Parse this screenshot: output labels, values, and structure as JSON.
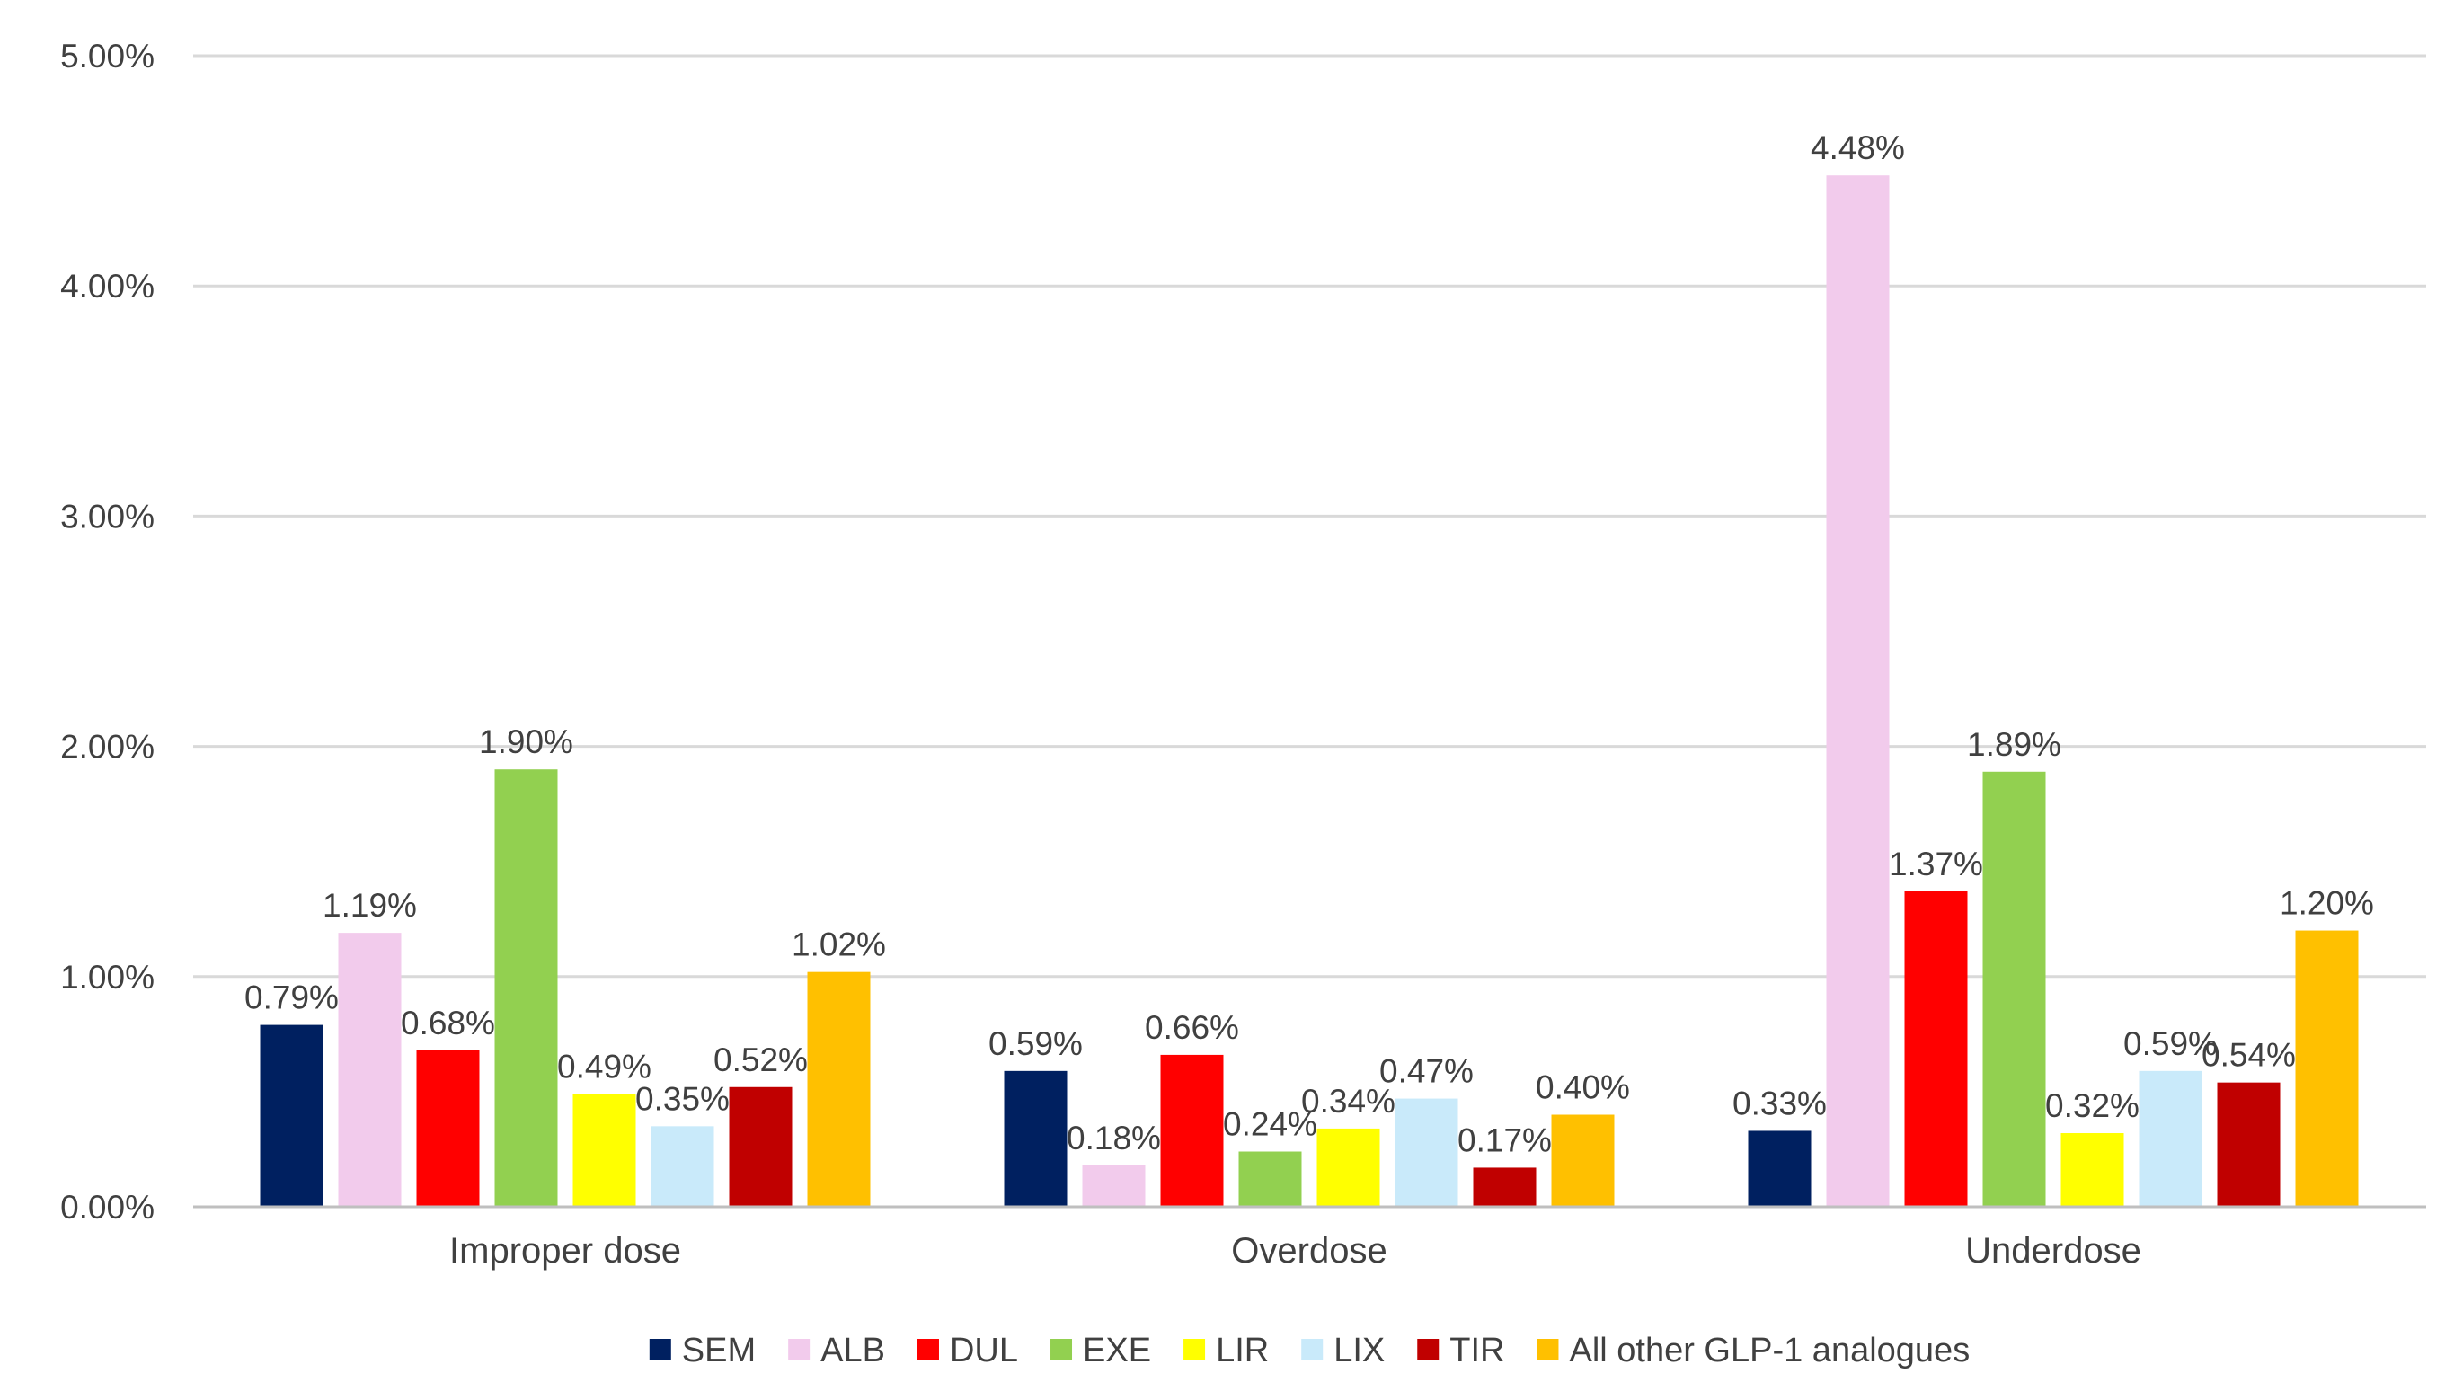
{
  "chart_data": {
    "type": "bar",
    "title": "",
    "xlabel": "",
    "ylabel": "",
    "categories": [
      "Improper dose",
      "Overdose",
      "Underdose"
    ],
    "ylim": [
      0,
      5
    ],
    "yticks": [
      "0.00%",
      "1.00%",
      "2.00%",
      "3.00%",
      "4.00%",
      "5.00%"
    ],
    "grid": true,
    "legend": "bottom",
    "series": [
      {
        "name": "SEM",
        "color": "#002060",
        "values": [
          0.79,
          0.59,
          0.33
        ],
        "labels": [
          "0.79%",
          "0.59%",
          "0.33%"
        ]
      },
      {
        "name": "ALB",
        "color": "#f2cbec",
        "values": [
          1.19,
          0.18,
          4.48
        ],
        "labels": [
          "1.19%",
          "0.18%",
          "4.48%"
        ]
      },
      {
        "name": "DUL",
        "color": "#ff0000",
        "values": [
          0.68,
          0.66,
          1.37
        ],
        "labels": [
          "0.68%",
          "0.66%",
          "1.37%"
        ]
      },
      {
        "name": "EXE",
        "color": "#92d050",
        "values": [
          1.9,
          0.24,
          1.89
        ],
        "labels": [
          "1.90%",
          "0.24%",
          "1.89%"
        ]
      },
      {
        "name": "LIR",
        "color": "#ffff00",
        "values": [
          0.49,
          0.34,
          0.32
        ],
        "labels": [
          "0.49%",
          "0.34%",
          "0.32%"
        ]
      },
      {
        "name": "LIX",
        "color": "#c9eafa",
        "values": [
          0.35,
          0.47,
          0.59
        ],
        "labels": [
          "0.35%",
          "0.47%",
          "0.59%"
        ]
      },
      {
        "name": "TIR",
        "color": "#c00000",
        "values": [
          0.52,
          0.17,
          0.54
        ],
        "labels": [
          "0.52%",
          "0.17%",
          "0.54%"
        ]
      },
      {
        "name": "All other GLP-1 analogues",
        "color": "#ffc000",
        "values": [
          1.02,
          0.4,
          1.2
        ],
        "labels": [
          "1.02%",
          "0.40%",
          "1.20%"
        ]
      }
    ]
  }
}
